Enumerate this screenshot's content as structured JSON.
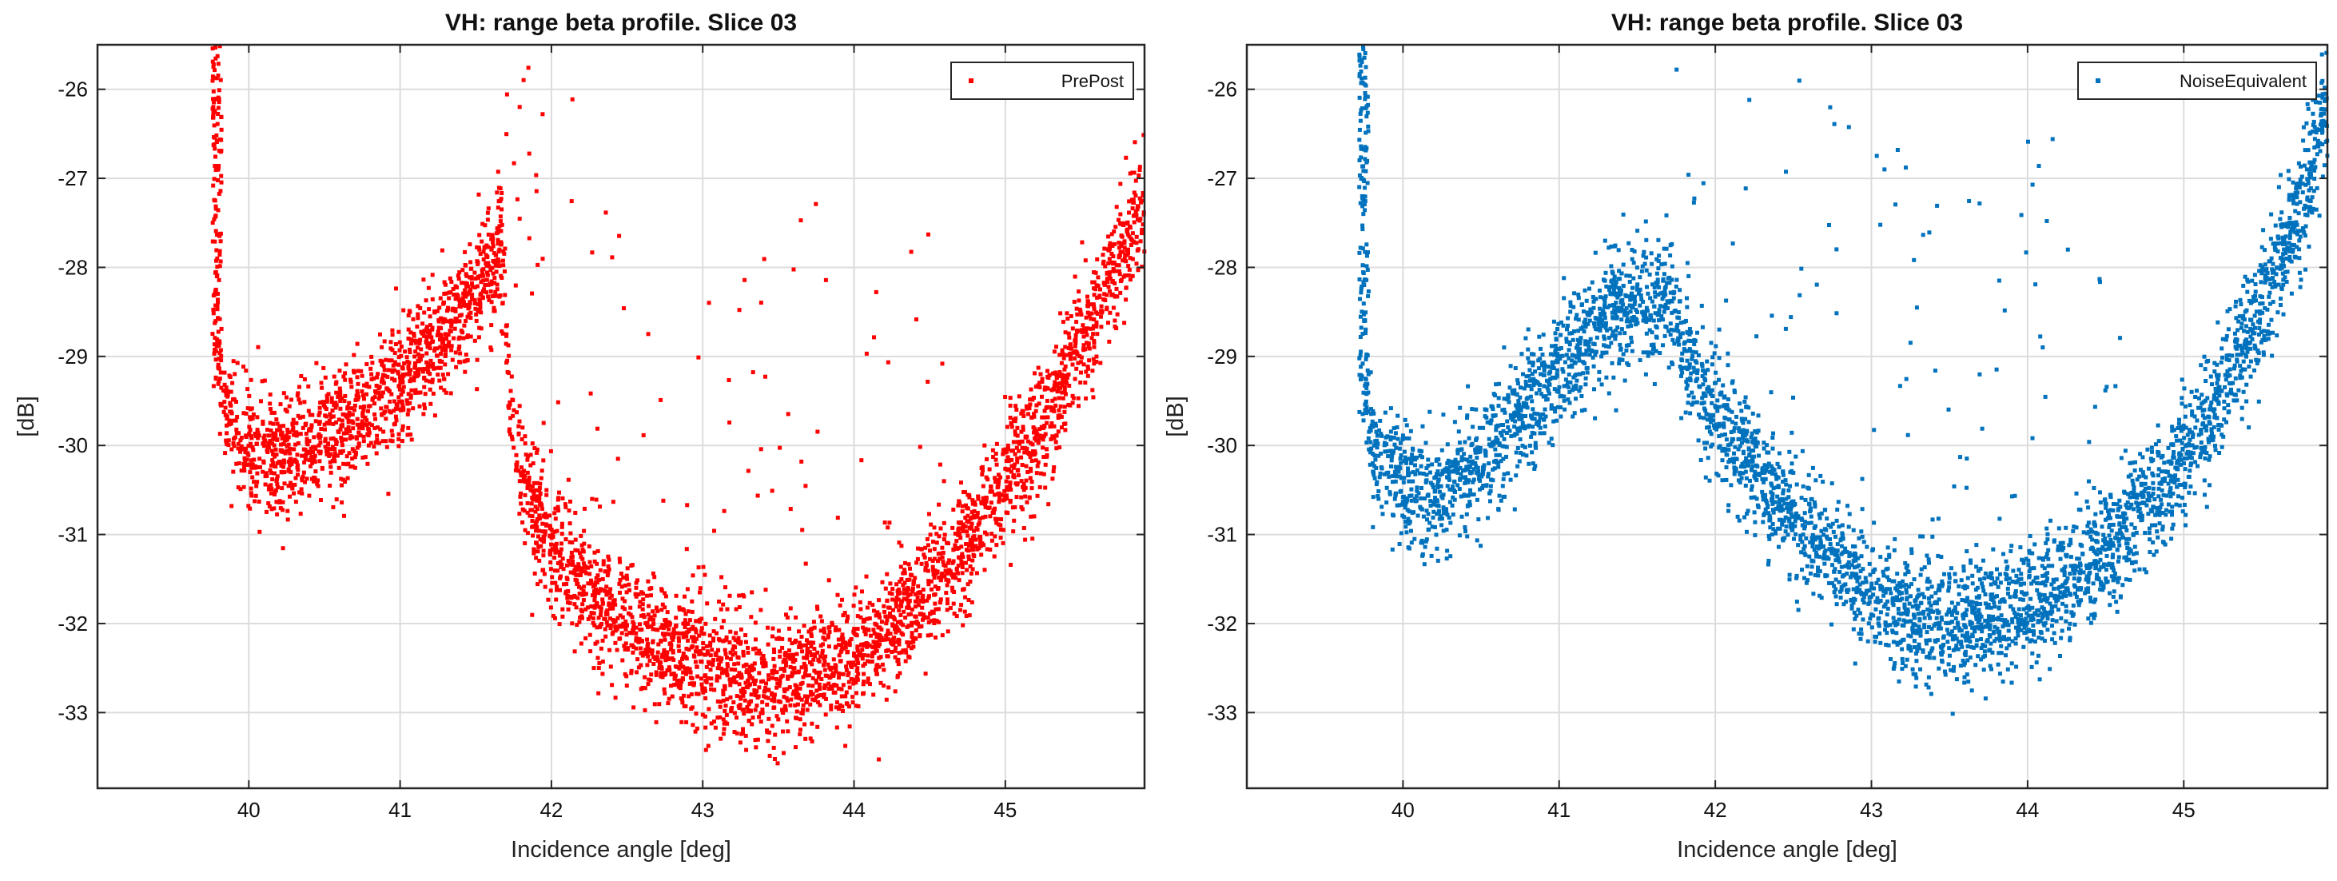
{
  "chart_data": [
    {
      "type": "scatter",
      "title": "VH: range beta profile.  Slice 03",
      "xlabel": "Incidence angle [deg]",
      "ylabel": "[dB]",
      "xlim": [
        39.0,
        45.92
      ],
      "ylim": [
        -33.85,
        -25.5
      ],
      "xticks": [
        40,
        41,
        42,
        43,
        44,
        45
      ],
      "xtick_labels": [
        "40",
        "41",
        "42",
        "43",
        "44",
        "45"
      ],
      "yticks": [
        -26,
        -27,
        -28,
        -29,
        -30,
        -31,
        -32,
        -33
      ],
      "ytick_labels": [
        "-26",
        "-27",
        "-28",
        "-29",
        "-30",
        "-31",
        "-32",
        "-33"
      ],
      "grid": true,
      "legend_position": "top-right",
      "series": [
        {
          "name": "PrePost",
          "color": "#ff0000",
          "marker": "dot",
          "x": [
            39.76,
            39.8,
            39.85,
            39.9,
            40.0,
            40.1,
            40.2,
            40.3,
            40.4,
            40.5,
            40.6,
            40.7,
            40.8,
            40.9,
            41.0,
            41.1,
            41.2,
            41.3,
            41.4,
            41.5,
            41.6,
            41.68,
            41.72,
            41.75,
            41.8,
            41.9,
            42.0,
            42.2,
            42.4,
            42.6,
            42.8,
            43.0,
            43.2,
            43.4,
            43.5,
            43.6,
            43.8,
            44.0,
            44.2,
            44.4,
            44.6,
            44.8,
            45.0,
            45.2,
            45.4,
            45.6,
            45.8,
            45.92
          ],
          "y": [
            -25.6,
            -29.2,
            -29.6,
            -29.8,
            -30.0,
            -30.1,
            -30.2,
            -30.1,
            -30.0,
            -29.9,
            -29.8,
            -29.7,
            -29.6,
            -29.4,
            -29.3,
            -29.1,
            -28.9,
            -28.7,
            -28.5,
            -28.3,
            -28.0,
            -27.7,
            -29.5,
            -30.0,
            -30.3,
            -30.7,
            -31.1,
            -31.5,
            -31.9,
            -32.1,
            -32.3,
            -32.5,
            -32.6,
            -32.7,
            -32.7,
            -32.6,
            -32.5,
            -32.4,
            -32.1,
            -31.8,
            -31.4,
            -31.0,
            -30.4,
            -29.9,
            -29.2,
            -28.5,
            -27.7,
            -27.2
          ]
        }
      ]
    },
    {
      "type": "scatter",
      "title": "VH: range beta profile.  Slice 03",
      "xlabel": "Incidence angle [deg]",
      "ylabel": "[dB]",
      "xlim": [
        39.0,
        45.92
      ],
      "ylim": [
        -33.85,
        -25.5
      ],
      "xticks": [
        40,
        41,
        42,
        43,
        44,
        45
      ],
      "xtick_labels": [
        "40",
        "41",
        "42",
        "43",
        "44",
        "45"
      ],
      "yticks": [
        -26,
        -27,
        -28,
        -29,
        -30,
        -31,
        -32,
        -33
      ],
      "ytick_labels": [
        "-26",
        "-27",
        "-28",
        "-29",
        "-30",
        "-31",
        "-32",
        "-33"
      ],
      "grid": true,
      "legend_position": "top-right",
      "series": [
        {
          "name": "NoiseEquivalent",
          "color": "#0072bd",
          "marker": "dot",
          "x": [
            39.72,
            39.76,
            39.8,
            39.9,
            40.0,
            40.1,
            40.2,
            40.3,
            40.4,
            40.5,
            40.6,
            40.7,
            40.8,
            40.9,
            41.0,
            41.1,
            41.2,
            41.3,
            41.4,
            41.5,
            41.6,
            41.7,
            41.8,
            41.9,
            42.0,
            42.2,
            42.4,
            42.6,
            42.8,
            43.0,
            43.2,
            43.4,
            43.6,
            43.8,
            44.0,
            44.2,
            44.4,
            44.6,
            44.8,
            45.0,
            45.2,
            45.4,
            45.6,
            45.8,
            45.92
          ],
          "y": [
            -25.6,
            -29.5,
            -30.0,
            -30.2,
            -30.4,
            -30.5,
            -30.5,
            -30.4,
            -30.3,
            -30.2,
            -30.0,
            -29.8,
            -29.6,
            -29.4,
            -29.2,
            -29.0,
            -28.8,
            -28.6,
            -28.5,
            -28.4,
            -28.4,
            -28.3,
            -28.9,
            -29.3,
            -29.6,
            -30.1,
            -30.6,
            -31.0,
            -31.4,
            -31.6,
            -31.9,
            -32.0,
            -32.0,
            -31.9,
            -31.8,
            -31.6,
            -31.3,
            -31.0,
            -30.6,
            -30.2,
            -29.5,
            -28.8,
            -28.0,
            -27.0,
            -26.0
          ]
        }
      ]
    }
  ]
}
